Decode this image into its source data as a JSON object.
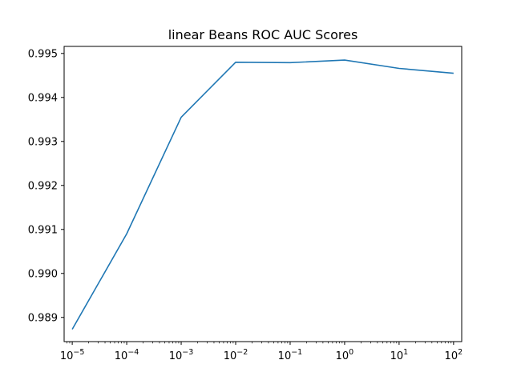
{
  "chart_data": {
    "type": "line",
    "title": "linear Beans ROC AUC Scores",
    "xlabel": "",
    "ylabel": "",
    "xscale": "log",
    "xlim": [
      7.1e-06,
      141
    ],
    "ylim": [
      0.98845,
      0.99516
    ],
    "grid": false,
    "x": [
      1e-05,
      0.0001,
      0.001,
      0.01,
      0.1,
      1,
      10,
      100
    ],
    "x_tick_labels": [
      {
        "base": "10",
        "exp": "−5"
      },
      {
        "base": "10",
        "exp": "−4"
      },
      {
        "base": "10",
        "exp": "−3"
      },
      {
        "base": "10",
        "exp": "−2"
      },
      {
        "base": "10",
        "exp": "−1"
      },
      {
        "base": "10",
        "exp": "0"
      },
      {
        "base": "10",
        "exp": "1"
      },
      {
        "base": "10",
        "exp": "2"
      }
    ],
    "y_ticks": [
      0.989,
      0.99,
      0.991,
      0.992,
      0.993,
      0.994,
      0.995
    ],
    "y_tick_labels": [
      "0.989",
      "0.990",
      "0.991",
      "0.992",
      "0.993",
      "0.994",
      "0.995"
    ],
    "series": [
      {
        "color": "#1f77b4",
        "values": [
          0.98873,
          0.9909,
          0.99355,
          0.9948,
          0.99479,
          0.99485,
          0.99466,
          0.99455
        ]
      }
    ]
  }
}
